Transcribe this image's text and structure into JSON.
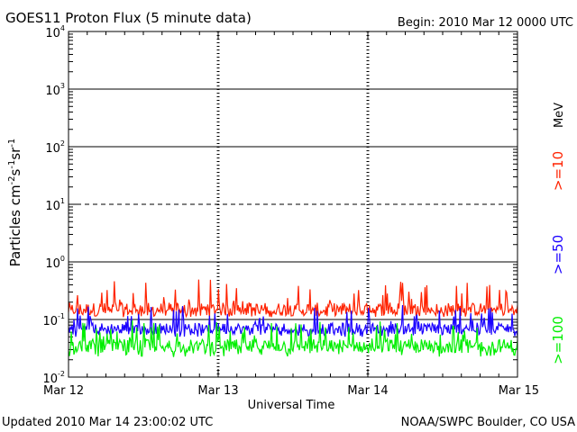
{
  "header": {
    "title": "GOES11 Proton Flux (5 minute data)",
    "begin": "Begin: 2010 Mar 12 0000 UTC"
  },
  "footer": {
    "updated": "Updated 2010 Mar 14 23:00:02 UTC",
    "credit": "NOAA/SWPC Boulder, CO USA"
  },
  "chart_data": {
    "type": "line",
    "title": "GOES11 Proton Flux (5 minute data)",
    "xlabel": "Universal Time",
    "ylabel": "Particles cm⁻²s⁻¹sr⁻¹",
    "y_scale": "log",
    "ylim": [
      0.01,
      10000
    ],
    "xlim": [
      "2010-03-12",
      "2010-03-15"
    ],
    "x_ticks": [
      "Mar 12",
      "Mar 13",
      "Mar 14",
      "Mar 15"
    ],
    "y_ticks": [
      {
        "base": "10",
        "exp": "4",
        "value": 10000
      },
      {
        "base": "10",
        "exp": "3",
        "value": 1000
      },
      {
        "base": "10",
        "exp": "2",
        "value": 100
      },
      {
        "base": "10",
        "exp": "1",
        "value": 10
      },
      {
        "base": "10",
        "exp": "0",
        "value": 1
      },
      {
        "base": "10",
        "exp": "-1",
        "value": 0.1
      },
      {
        "base": "10",
        "exp": "-2",
        "value": 0.01
      }
    ],
    "unit_label": "MeV",
    "reference_lines": [
      {
        "value": 1000,
        "style": "solid"
      },
      {
        "value": 100,
        "style": "solid"
      },
      {
        "value": 10,
        "style": "dashed"
      },
      {
        "value": 1,
        "style": "solid"
      },
      {
        "value": 0.1,
        "style": "solid"
      }
    ],
    "series": [
      {
        "name": ">=10",
        "color": "#ff2200",
        "baseline": 0.15,
        "low": 0.11,
        "high": 0.5
      },
      {
        "name": ">=50",
        "color": "#1a00ff",
        "baseline": 0.07,
        "low": 0.05,
        "high": 0.18
      },
      {
        "name": ">=100",
        "color": "#00ee00",
        "baseline": 0.035,
        "low": 0.022,
        "high": 0.1
      }
    ],
    "grid": "dashed vertical day lines"
  }
}
